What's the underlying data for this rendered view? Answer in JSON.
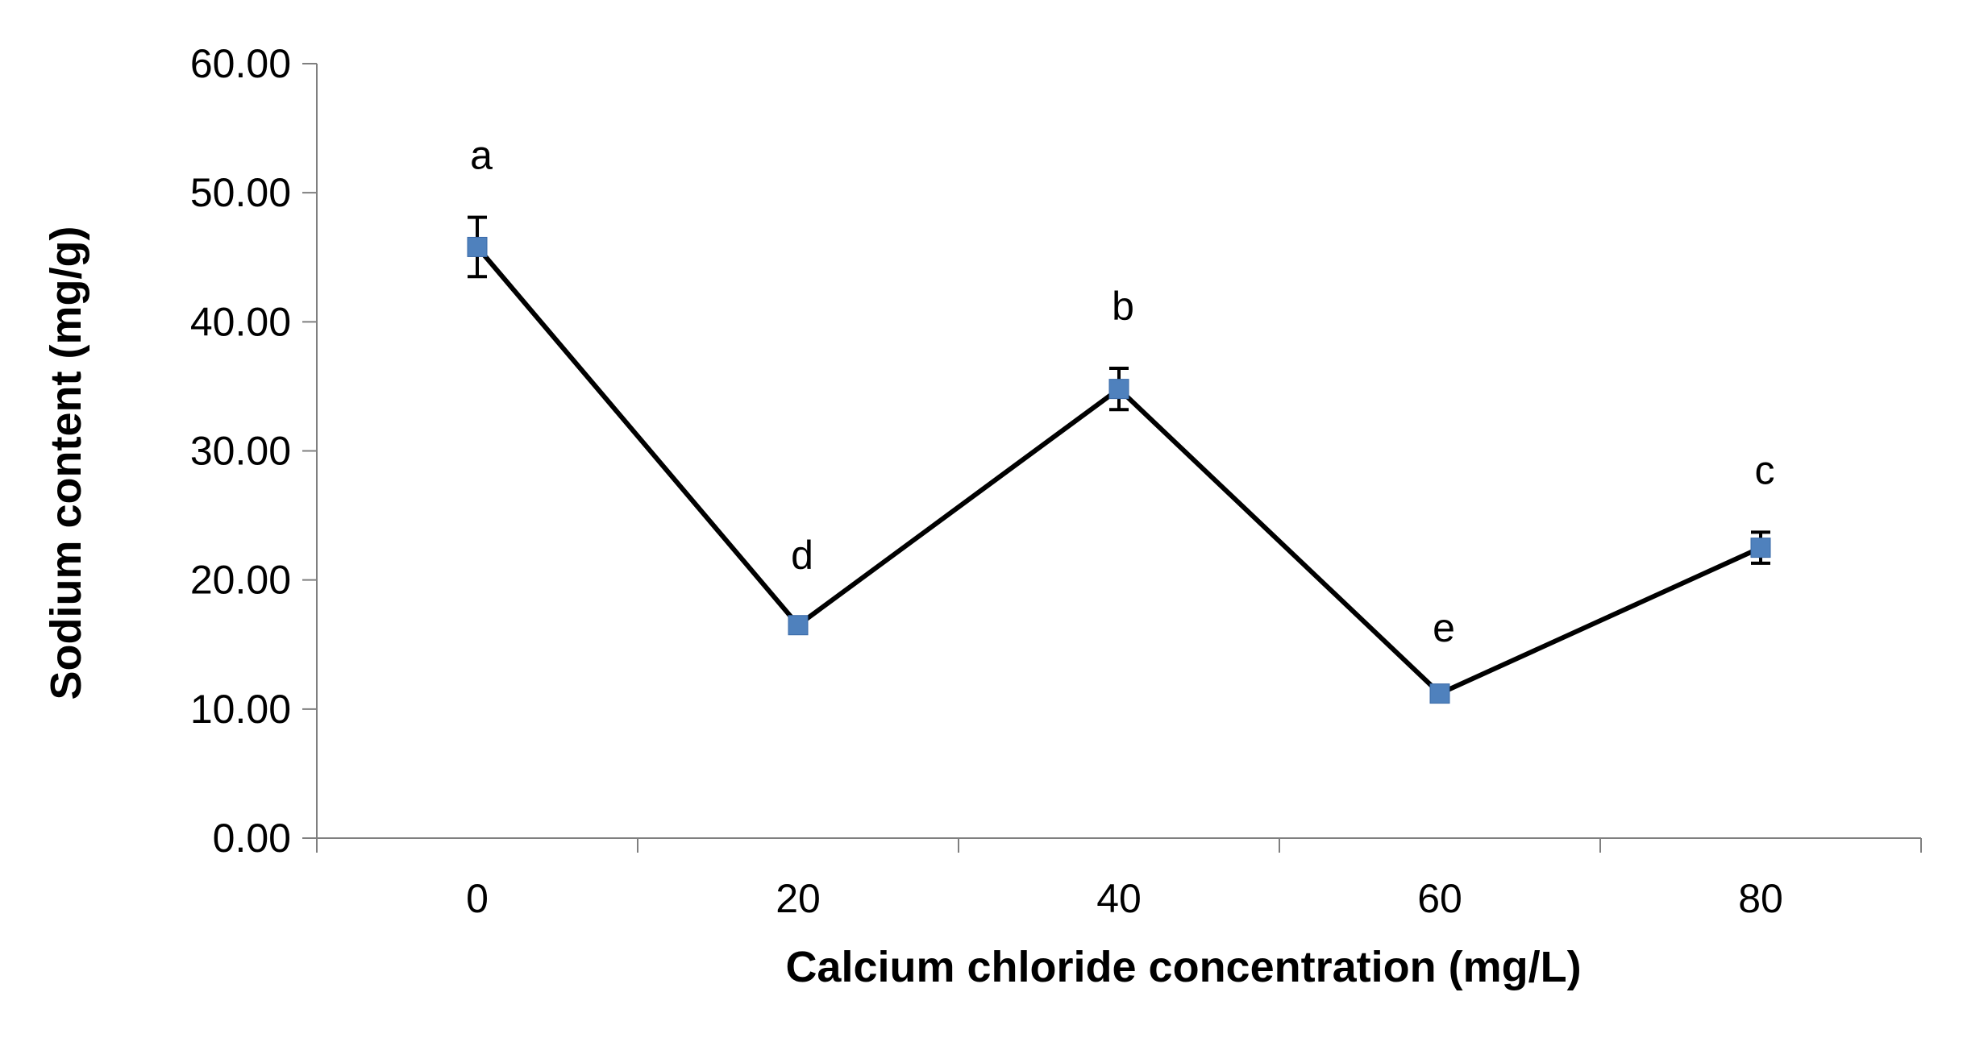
{
  "chart_data": {
    "type": "line",
    "title": "",
    "xlabel": "Calcium chloride concentration (mg/L)",
    "ylabel": "Sodium content (mg/g)",
    "categories": [
      "0",
      "20",
      "40",
      "60",
      "80"
    ],
    "y_tick_labels": [
      "0.00",
      "10.00",
      "20.00",
      "30.00",
      "40.00",
      "50.00",
      "60.00"
    ],
    "ylim": [
      0,
      60
    ],
    "grid": false,
    "legend": "none",
    "series": [
      {
        "values": [
          45.8,
          16.5,
          34.8,
          11.2,
          22.5
        ],
        "error": [
          2.3,
          0.6,
          1.6,
          0.3,
          1.2
        ],
        "significance_letters": [
          "a",
          "d",
          "b",
          "e",
          "c"
        ]
      }
    ],
    "colors": {
      "line": "#000000",
      "marker": "#4f81bd",
      "axis": "#7f7f7f"
    }
  }
}
